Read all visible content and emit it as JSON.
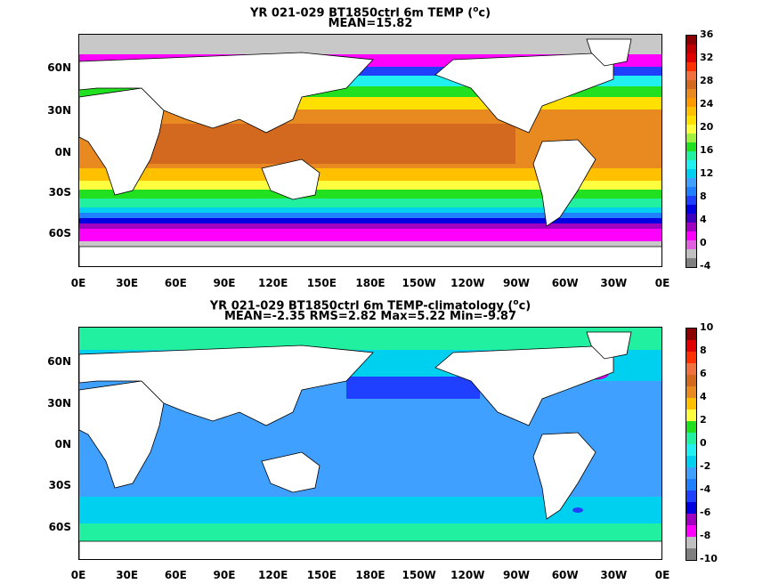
{
  "panel_top": {
    "title_line1": "YR 021-029 BT1850ctrl 6m TEMP (",
    "title_unit": "o",
    "title_unit_suffix": "c)",
    "title_line2": "MEAN=15.82",
    "colorbar_labels": [
      "36",
      "32",
      "28",
      "24",
      "20",
      "16",
      "12",
      "8",
      "4",
      "0",
      "-4"
    ],
    "colorbar_colors": [
      "#8b0000",
      "#c00000",
      "#e00000",
      "#ff3000",
      "#f07040",
      "#d2691e",
      "#e88a20",
      "#ff9900",
      "#ffc000",
      "#ffe000",
      "#ffff40",
      "#a0f040",
      "#20e020",
      "#20f0a0",
      "#20f0f0",
      "#00d0f0",
      "#40a0ff",
      "#2080ff",
      "#2040ff",
      "#0000e0",
      "#4000c0",
      "#a000c0",
      "#ff00ff",
      "#e060e0",
      "#c0c0c0",
      "#808080"
    ]
  },
  "panel_bottom": {
    "title_line1": "YR 021-029 BT1850ctrl 6m TEMP-climatology (",
    "title_unit": "o",
    "title_unit_suffix": "c)",
    "title_line2": "MEAN=-2.35   RMS=2.82   Max=5.22   Min=-9.87",
    "colorbar_labels": [
      "10",
      "8",
      "6",
      "4",
      "2",
      "0",
      "-2",
      "-4",
      "-6",
      "-8",
      "-10"
    ],
    "colorbar_colors": [
      "#8b0000",
      "#e00000",
      "#ff3000",
      "#f07040",
      "#d2691e",
      "#e88a20",
      "#ffc000",
      "#ffff40",
      "#20e020",
      "#20f0a0",
      "#20f0f0",
      "#00d0f0",
      "#40a0ff",
      "#2080ff",
      "#2040ff",
      "#0000e0",
      "#a000c0",
      "#ff00ff",
      "#c0c0c0",
      "#808080"
    ]
  },
  "lat_labels": [
    "60N",
    "30N",
    "0N",
    "30S",
    "60S"
  ],
  "lon_labels": [
    "0E",
    "30E",
    "60E",
    "90E",
    "120E",
    "150E",
    "180E",
    "150W",
    "120W",
    "90W",
    "60W",
    "30W",
    "0E"
  ],
  "colors": {
    "land": "#ffffff",
    "ice_mask": "#c8c8c8"
  }
}
